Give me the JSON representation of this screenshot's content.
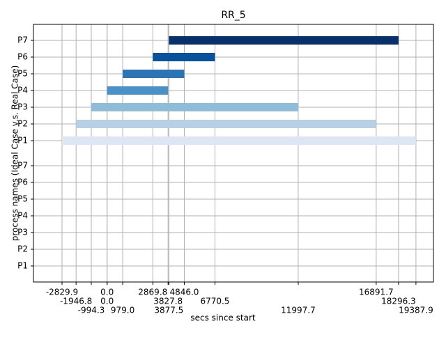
{
  "chart_data": {
    "type": "gantt",
    "title": "RR_5",
    "x_label": "secs since start",
    "y_label": "process names (Ideal Case v.s. Real Case)",
    "categories": [
      "P7",
      "P6",
      "P5",
      "P4",
      "P3",
      "P2",
      "P1",
      "P7",
      "P6",
      "P5",
      "P4",
      "P3",
      "P2",
      "P1"
    ],
    "starts": [
      3877.5,
      2869.8,
      979.0,
      0.0,
      -994.3,
      -1946.8,
      -2829.9,
      null,
      null,
      null,
      null,
      null,
      null,
      null
    ],
    "ends": [
      18296.3,
      6770.5,
      4846.0,
      3827.8,
      11997.7,
      16891.7,
      19387.9,
      null,
      null,
      null,
      null,
      null,
      null,
      null
    ],
    "colors": [
      "#08306b",
      "#08519c",
      "#2b74b6",
      "#4a91c8",
      "#8fbcd9",
      "#b6d0e5",
      "#dce7f3",
      null,
      null,
      null,
      null,
      null,
      null,
      null
    ],
    "xlim": [
      -4623,
      20486
    ],
    "xticks": [
      -2829.9,
      -1946.8,
      -994.3,
      {
        "value": 0,
        "label": "0.0"
      },
      {
        "value": 0,
        "label": "0.0"
      },
      {
        "value": 979,
        "label": "979.0"
      },
      2869.8,
      3827.8,
      3877.5,
      {
        "value": 4846,
        "label": "4846.0"
      },
      6770.5,
      11997.7,
      16891.7,
      18296.3,
      19387.9
    ],
    "grid": true
  }
}
